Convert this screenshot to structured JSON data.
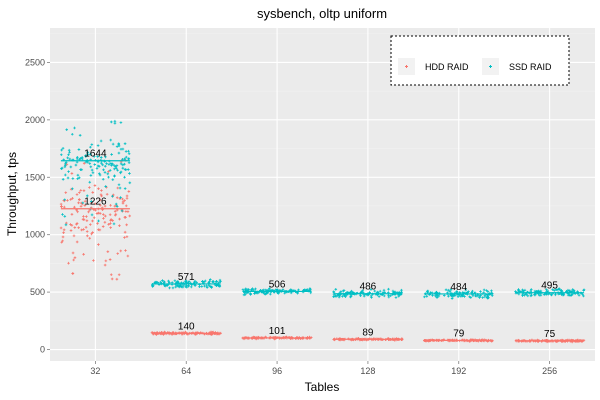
{
  "chart_data": {
    "type": "scatter",
    "title": "sysbench, oltp uniform",
    "xlabel": "Tables",
    "ylabel": "Throughput, tps",
    "categories": [
      "32",
      "64",
      "96",
      "128",
      "192",
      "256"
    ],
    "ylim": [
      -100,
      2800
    ],
    "yticks": [
      0,
      500,
      1000,
      1500,
      2000,
      2500
    ],
    "grid": true,
    "legend_position": "top-right",
    "series": [
      {
        "name": "HDD RAID",
        "color": "#F8766D",
        "means": [
          1226,
          140,
          101,
          89,
          79,
          75
        ],
        "spread": [
          {
            "center": 1226,
            "low": 600,
            "high": 1700
          },
          {
            "center": 140,
            "low": 125,
            "high": 155
          },
          {
            "center": 101,
            "low": 90,
            "high": 112
          },
          {
            "center": 89,
            "low": 78,
            "high": 100
          },
          {
            "center": 79,
            "low": 68,
            "high": 90
          },
          {
            "center": 75,
            "low": 64,
            "high": 86
          }
        ]
      },
      {
        "name": "SSD RAID",
        "color": "#00BFC4",
        "means": [
          1644,
          571,
          506,
          486,
          484,
          495
        ],
        "spread": [
          {
            "center": 1644,
            "low": 1050,
            "high": 2000
          },
          {
            "center": 571,
            "low": 520,
            "high": 620
          },
          {
            "center": 506,
            "low": 470,
            "high": 540
          },
          {
            "center": 486,
            "low": 440,
            "high": 530
          },
          {
            "center": 484,
            "low": 430,
            "high": 530
          },
          {
            "center": 495,
            "low": 450,
            "high": 540
          }
        ]
      }
    ]
  }
}
